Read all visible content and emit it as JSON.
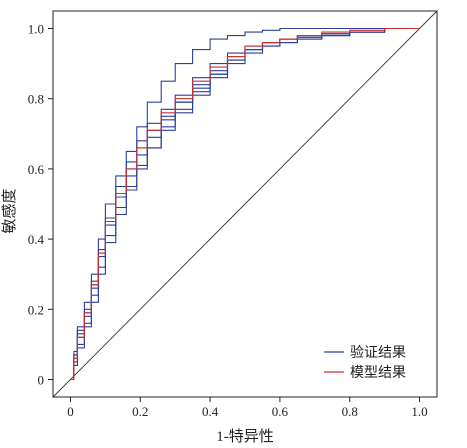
{
  "chart_data": {
    "type": "line",
    "title": "",
    "xlabel": "1-特异性",
    "ylabel": "敏感度",
    "xlim": [
      -0.05,
      1.05
    ],
    "ylim": [
      -0.05,
      1.05
    ],
    "x_ticks": [
      0,
      0.2,
      0.4,
      0.6,
      0.8,
      1.0
    ],
    "x_tick_labels": [
      "0",
      "0.2",
      "0.4",
      "0.6",
      "0.8",
      "1.0"
    ],
    "y_ticks": [
      0,
      0.2,
      0.4,
      0.6,
      0.8,
      1.0
    ],
    "y_tick_labels": [
      "0",
      "0.2",
      "0.4",
      "0.6",
      "0.8",
      "1.0"
    ],
    "grid": false,
    "legend_position": "bottom-right",
    "colors": {
      "validation": "#2a3f9e",
      "model": "#c8302c",
      "reference": "#333333"
    },
    "series": [
      {
        "name": "验证结果",
        "role": "validation",
        "x": [
          0,
          0.01,
          0.02,
          0.04,
          0.06,
          0.08,
          0.1,
          0.13,
          0.16,
          0.19,
          0.22,
          0.26,
          0.3,
          0.35,
          0.4,
          0.45,
          0.5,
          0.55,
          0.6,
          0.65,
          0.72,
          0.8,
          0.9,
          1.0
        ],
        "y": [
          0,
          0.08,
          0.15,
          0.22,
          0.3,
          0.4,
          0.5,
          0.58,
          0.65,
          0.72,
          0.79,
          0.85,
          0.9,
          0.94,
          0.97,
          0.98,
          0.99,
          0.995,
          1.0,
          1.0,
          1.0,
          1.0,
          1.0,
          1.0
        ]
      },
      {
        "name": "验证结果",
        "role": "validation",
        "x": [
          0,
          0.01,
          0.02,
          0.04,
          0.06,
          0.08,
          0.1,
          0.13,
          0.16,
          0.19,
          0.22,
          0.26,
          0.3,
          0.35,
          0.4,
          0.45,
          0.5,
          0.55,
          0.6,
          0.65,
          0.72,
          0.8,
          0.9,
          0.95
        ],
        "y": [
          0,
          0.07,
          0.14,
          0.2,
          0.28,
          0.37,
          0.46,
          0.55,
          0.62,
          0.68,
          0.73,
          0.77,
          0.81,
          0.86,
          0.9,
          0.93,
          0.95,
          0.96,
          0.97,
          0.98,
          0.985,
          0.99,
          1.0,
          1.0
        ]
      },
      {
        "name": "验证结果",
        "role": "validation",
        "x": [
          0,
          0.01,
          0.02,
          0.04,
          0.06,
          0.08,
          0.1,
          0.13,
          0.16,
          0.19,
          0.22,
          0.26,
          0.3,
          0.35,
          0.4,
          0.45,
          0.5,
          0.55,
          0.6,
          0.65,
          0.72,
          0.8,
          0.9,
          1.0
        ],
        "y": [
          0,
          0.06,
          0.12,
          0.18,
          0.26,
          0.35,
          0.44,
          0.52,
          0.58,
          0.64,
          0.69,
          0.74,
          0.79,
          0.84,
          0.88,
          0.92,
          0.94,
          0.95,
          0.96,
          0.97,
          0.98,
          0.99,
          1.0,
          1.0
        ]
      },
      {
        "name": "验证结果",
        "role": "validation",
        "x": [
          0,
          0.01,
          0.02,
          0.04,
          0.06,
          0.08,
          0.1,
          0.13,
          0.16,
          0.19,
          0.22,
          0.26,
          0.3,
          0.35,
          0.4,
          0.45,
          0.5,
          0.55,
          0.6,
          0.65,
          0.72,
          0.8,
          0.9,
          1.0
        ],
        "y": [
          0,
          0.05,
          0.1,
          0.16,
          0.24,
          0.32,
          0.41,
          0.49,
          0.55,
          0.61,
          0.66,
          0.71,
          0.76,
          0.81,
          0.86,
          0.9,
          0.93,
          0.95,
          0.96,
          0.97,
          0.98,
          0.99,
          1.0,
          1.0
        ]
      },
      {
        "name": "验证结果",
        "role": "validation",
        "x": [
          0,
          0.01,
          0.02,
          0.04,
          0.06,
          0.08,
          0.1,
          0.13,
          0.16,
          0.19,
          0.22,
          0.26,
          0.3,
          0.35,
          0.4,
          0.45,
          0.5,
          0.55,
          0.6,
          0.65,
          0.72,
          0.8,
          0.9,
          1.0
        ],
        "y": [
          0,
          0.07,
          0.13,
          0.19,
          0.27,
          0.36,
          0.45,
          0.53,
          0.6,
          0.66,
          0.71,
          0.75,
          0.79,
          0.83,
          0.87,
          0.91,
          0.94,
          0.96,
          0.97,
          0.975,
          0.98,
          0.99,
          1.0,
          1.0
        ]
      },
      {
        "name": "验证结果",
        "role": "validation",
        "x": [
          0,
          0.01,
          0.02,
          0.04,
          0.06,
          0.08,
          0.1,
          0.13,
          0.16,
          0.19,
          0.22,
          0.26,
          0.3,
          0.35,
          0.4,
          0.45,
          0.5,
          0.55,
          0.6,
          0.65,
          0.72,
          0.8,
          0.9,
          1.0
        ],
        "y": [
          0,
          0.04,
          0.09,
          0.15,
          0.22,
          0.3,
          0.39,
          0.47,
          0.54,
          0.6,
          0.66,
          0.72,
          0.77,
          0.82,
          0.87,
          0.91,
          0.94,
          0.96,
          0.97,
          0.98,
          0.985,
          0.99,
          1.0,
          1.0
        ]
      },
      {
        "name": "模型结果",
        "role": "model",
        "x": [
          0,
          0.01,
          0.02,
          0.04,
          0.06,
          0.08,
          0.1,
          0.13,
          0.16,
          0.19,
          0.22,
          0.26,
          0.3,
          0.35,
          0.4,
          0.45,
          0.5,
          0.55,
          0.6,
          0.65,
          0.72,
          0.8,
          0.9,
          1.0
        ],
        "y": [
          0,
          0.06,
          0.12,
          0.19,
          0.27,
          0.36,
          0.45,
          0.53,
          0.6,
          0.66,
          0.71,
          0.76,
          0.8,
          0.85,
          0.89,
          0.92,
          0.95,
          0.96,
          0.97,
          0.98,
          0.99,
          0.995,
          1.0,
          1.0
        ]
      },
      {
        "name": "",
        "role": "reference",
        "x": [
          -0.05,
          1.05
        ],
        "y": [
          -0.05,
          1.05
        ]
      }
    ],
    "legend": [
      {
        "label": "验证结果",
        "role": "validation"
      },
      {
        "label": "模型结果",
        "role": "model"
      }
    ]
  }
}
